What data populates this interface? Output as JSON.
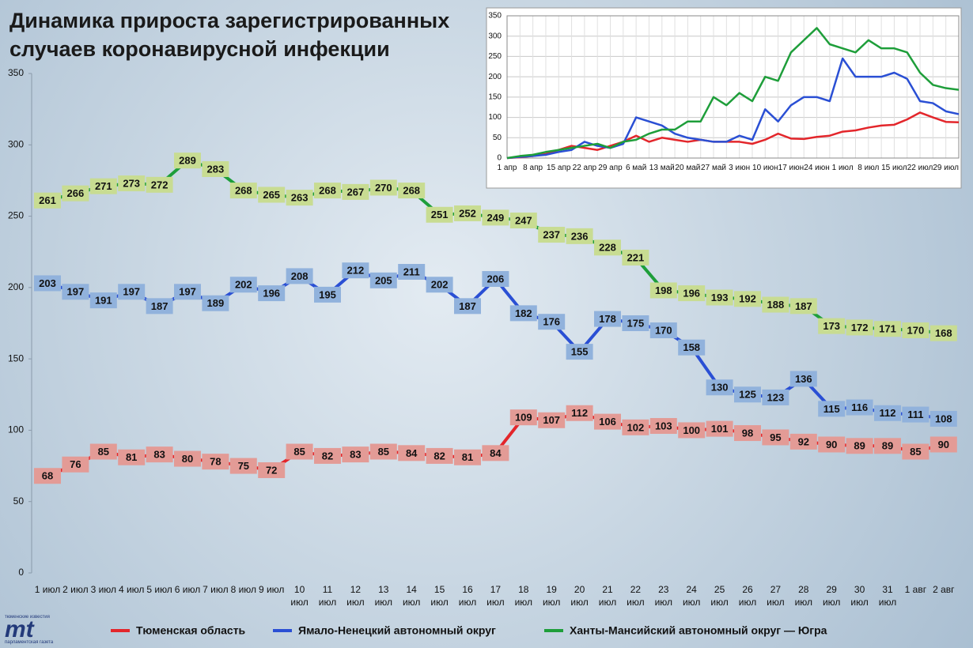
{
  "chart_data": [
    {
      "type": "line",
      "title": "Динамика прироста зарегистрированных случаев коронавирусной инфекции",
      "categories": [
        "1 июл",
        "2 июл",
        "3 июл",
        "4 июл",
        "5 июл",
        "6 июл",
        "7 июл",
        "8 июл",
        "9 июл",
        "10 июл",
        "11 июл",
        "12 июл",
        "13 июл",
        "14 июл",
        "15 июл",
        "16 июл",
        "17 июл",
        "18 июл",
        "19 июл",
        "20 июл",
        "21 июл",
        "22 июл",
        "23 июл",
        "24 июл",
        "25 июл",
        "26 июл",
        "27 июл",
        "28 июл",
        "29 июл",
        "30 июл",
        "31 июл",
        "1 авг",
        "2 авг"
      ],
      "ylim": [
        0,
        350
      ],
      "yticks": [
        0,
        50,
        100,
        150,
        200,
        250,
        300,
        350
      ],
      "grid": false,
      "legend": "bottom",
      "series": [
        {
          "name": "Тюменская область",
          "color": "#e3262b",
          "label_color": "#e39b96",
          "values": [
            68,
            76,
            85,
            81,
            83,
            80,
            78,
            75,
            72,
            85,
            82,
            83,
            85,
            84,
            82,
            81,
            84,
            109,
            107,
            112,
            106,
            102,
            103,
            100,
            101,
            98,
            95,
            92,
            90,
            89,
            89,
            85,
            90
          ]
        },
        {
          "name": "Ямало-Ненецкий автономный округ",
          "color": "#2a4fd4",
          "label_color": "#91b2dc",
          "values": [
            203,
            197,
            191,
            197,
            187,
            197,
            189,
            202,
            196,
            208,
            195,
            212,
            205,
            211,
            202,
            187,
            206,
            182,
            176,
            155,
            178,
            175,
            170,
            158,
            130,
            125,
            123,
            136,
            115,
            116,
            112,
            111,
            108
          ]
        },
        {
          "name": "Ханты-Мансийский автономный округ — Югра",
          "color": "#1e9e3a",
          "label_color": "#c8dc92",
          "values": [
            261,
            266,
            271,
            273,
            272,
            289,
            283,
            268,
            265,
            263,
            268,
            267,
            270,
            268,
            251,
            252,
            249,
            247,
            237,
            236,
            228,
            221,
            198,
            196,
            193,
            192,
            188,
            187,
            173,
            172,
            171,
            170,
            168
          ]
        }
      ]
    },
    {
      "type": "line",
      "categories": [
        "1 апр",
        null,
        "8 апр",
        null,
        "15 апр",
        null,
        "22 апр",
        null,
        "29 апр",
        null,
        "6 май",
        null,
        "13 май",
        null,
        "20 май",
        null,
        "27 май",
        null,
        "3 июн",
        null,
        "10 июн",
        null,
        "17 июн",
        null,
        "24 июн",
        null,
        "1 июл",
        null,
        "8 июл",
        null,
        "15 июл",
        null,
        "22 июл",
        null,
        "29 июл",
        null
      ],
      "ylim": [
        0,
        350
      ],
      "yticks": [
        0,
        50,
        100,
        150,
        200,
        250,
        300,
        350
      ],
      "grid": true,
      "series": [
        {
          "color": "#e3262b",
          "values": [
            0,
            2,
            5,
            10,
            20,
            30,
            25,
            20,
            30,
            40,
            55,
            40,
            50,
            45,
            40,
            45,
            40,
            40,
            40,
            35,
            45,
            60,
            48,
            47,
            52,
            55,
            65,
            68,
            75,
            80,
            82,
            95,
            112,
            100,
            89,
            88
          ]
        },
        {
          "color": "#2a4fd4",
          "values": [
            0,
            3,
            5,
            8,
            15,
            20,
            40,
            30,
            25,
            35,
            100,
            90,
            80,
            60,
            50,
            45,
            40,
            40,
            55,
            45,
            120,
            90,
            130,
            150,
            150,
            140,
            245,
            200,
            200,
            200,
            210,
            195,
            140,
            135,
            115,
            108
          ]
        },
        {
          "color": "#1e9e3a",
          "values": [
            0,
            5,
            8,
            15,
            20,
            25,
            30,
            35,
            25,
            40,
            45,
            60,
            70,
            70,
            90,
            90,
            150,
            130,
            160,
            140,
            200,
            190,
            260,
            290,
            320,
            280,
            270,
            260,
            290,
            270,
            270,
            260,
            210,
            180,
            172,
            168
          ]
        }
      ]
    }
  ],
  "logo": {
    "top": "тюменские известия",
    "mark": "mt",
    "bottom": "парламентская газета"
  }
}
